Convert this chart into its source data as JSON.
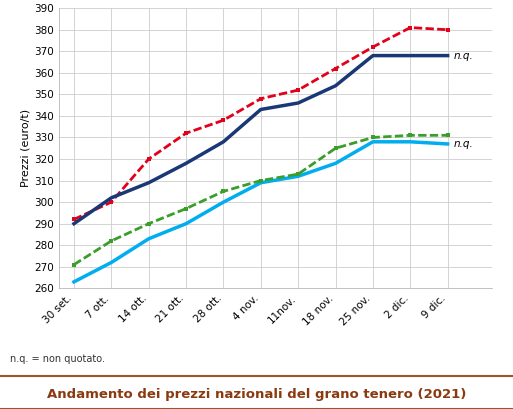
{
  "x_labels": [
    "30 set.",
    "7 ott.",
    "14 ott.",
    "21 ott.",
    "28 ott.",
    "4 nov.",
    "11nov.",
    "18 nov.",
    "25 nov.",
    "2 dic.",
    "9 dic."
  ],
  "bologna_spec_forza1": [
    292,
    300,
    320,
    332,
    338,
    348,
    352,
    362,
    372,
    381,
    380
  ],
  "bologna_fino3": [
    271,
    282,
    290,
    297,
    305,
    310,
    313,
    325,
    330,
    331,
    331
  ],
  "milano_di_forza": [
    290,
    302,
    309,
    318,
    328,
    343,
    346,
    354,
    368,
    368,
    368
  ],
  "milano_panificabile": [
    263,
    272,
    283,
    290,
    300,
    309,
    312,
    318,
    328,
    328,
    327
  ],
  "colors": {
    "bologna_spec": "#e2001a",
    "bologna_fino": "#3a9e2b",
    "milano_forza": "#1a3876",
    "milano_pan": "#00aeef"
  },
  "ylabel": "Prezzi (euro/t)",
  "ylim": [
    260,
    390
  ],
  "yticks": [
    260,
    270,
    280,
    290,
    300,
    310,
    320,
    330,
    340,
    350,
    360,
    370,
    380,
    390
  ],
  "title": "Andamento dei prezzi nazionali del grano tenero (2021)",
  "nq_note": "n.q. = non quotato.",
  "bg_plot": "#ffffff",
  "bg_title": "#f5e6c8",
  "title_color": "#8B3A0F",
  "border_color": "#a0522d",
  "grid_color": "#cccccc",
  "nq_color": "#000000"
}
